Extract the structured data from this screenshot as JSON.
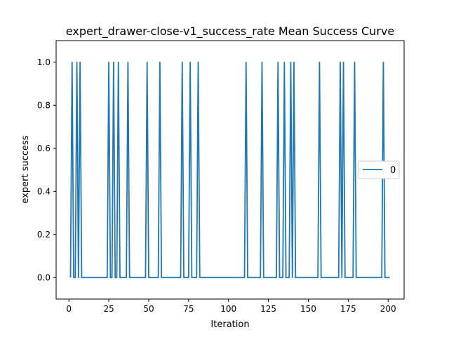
{
  "chart_data": {
    "type": "line",
    "title": "expert_drawer-close-v1_success_rate Mean Success Curve",
    "xlabel": "Iteration",
    "ylabel": "expert success",
    "xlim": [
      -8,
      210
    ],
    "ylim": [
      -0.1,
      1.1
    ],
    "xticks": [
      0,
      25,
      50,
      75,
      100,
      125,
      150,
      175,
      200
    ],
    "yticks": [
      0.0,
      0.2,
      0.4,
      0.6,
      0.8,
      1.0
    ],
    "xtick_labels": [
      "0",
      "25",
      "50",
      "75",
      "100",
      "125",
      "150",
      "175",
      "200"
    ],
    "ytick_labels": [
      "0.0",
      "0.2",
      "0.4",
      "0.6",
      "0.8",
      "1.0"
    ],
    "grid": false,
    "legend_position": "center-right",
    "series": [
      {
        "name": "0",
        "color": "#1f77b4",
        "x_start": 1,
        "x_end": 201,
        "success_iterations": [
          2,
          5,
          7,
          25,
          28,
          31,
          37,
          49,
          57,
          71,
          76,
          81,
          111,
          121,
          131,
          135,
          139,
          141,
          157,
          170,
          172,
          179,
          197
        ]
      }
    ]
  }
}
